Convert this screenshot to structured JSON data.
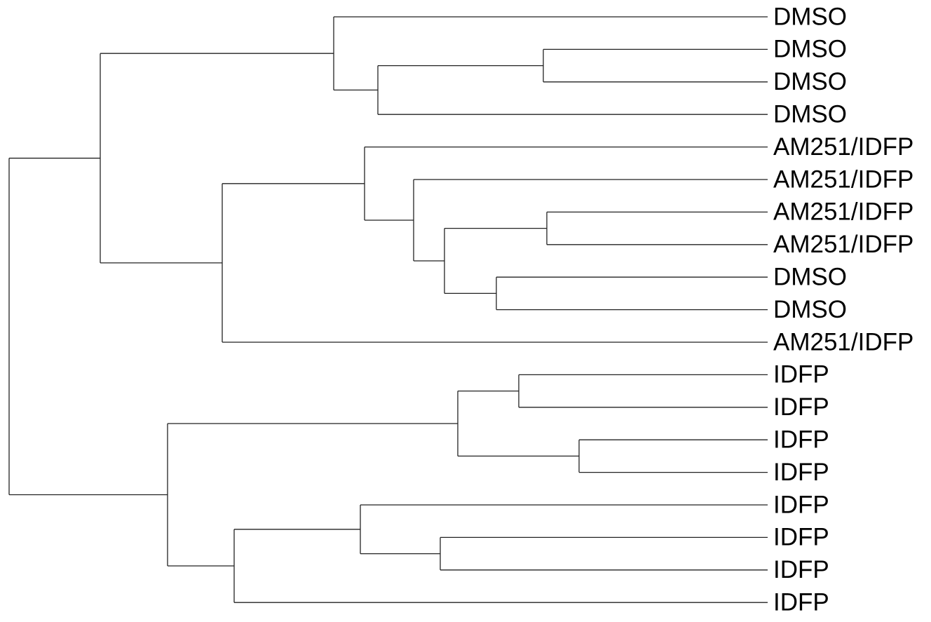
{
  "leaves": [
    "DMSO",
    "DMSO",
    "DMSO",
    "DMSO",
    "AM251/IDFP",
    "AM251/IDFP",
    "AM251/IDFP",
    "AM251/IDFP",
    "DMSO",
    "DMSO",
    "AM251/IDFP",
    "IDFP",
    "IDFP",
    "IDFP",
    "IDFP",
    "IDFP",
    "IDFP",
    "IDFP",
    "IDFP"
  ]
}
